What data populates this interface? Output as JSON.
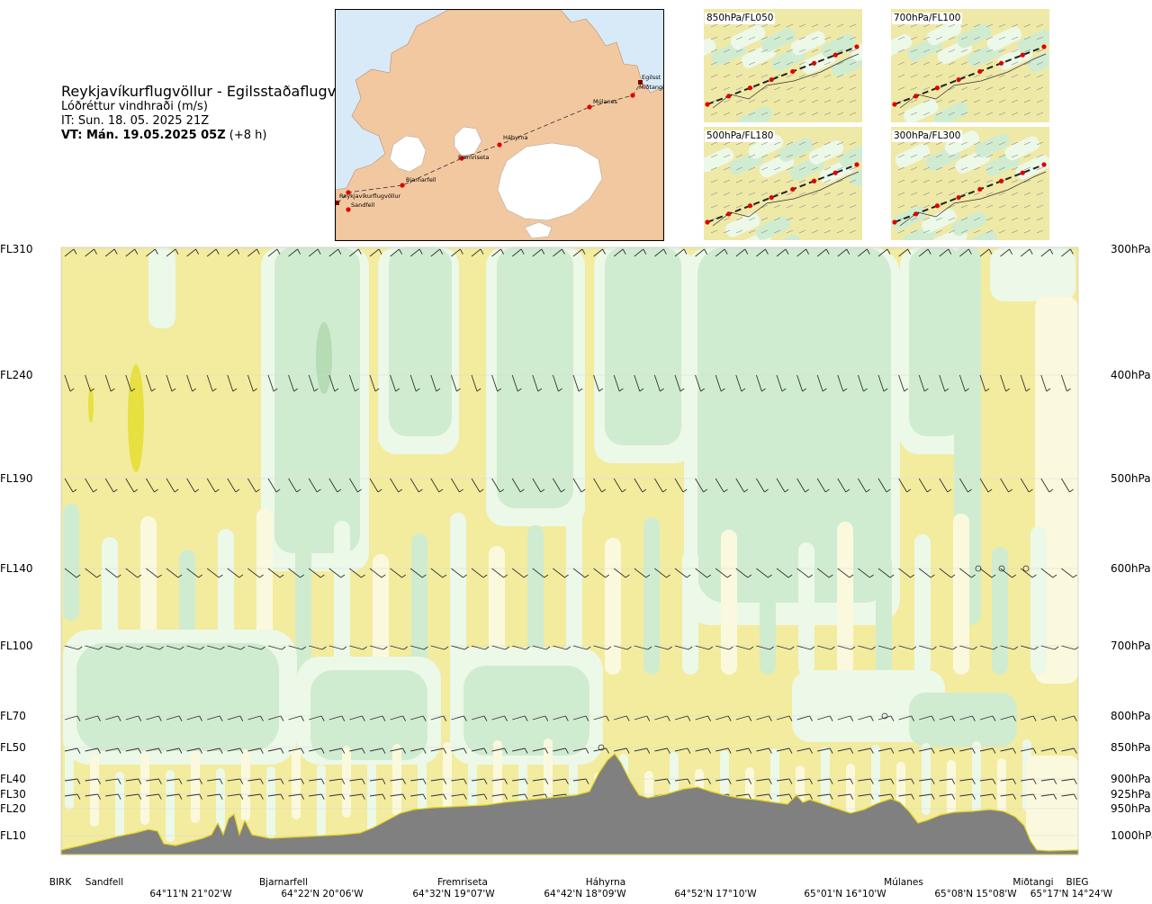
{
  "header": {
    "route_title": "Reykjavíkurflugvöllur - Egilsstaðaflugvöllur",
    "subtitle": "Lóðréttur vindhraði (m/s)",
    "issue_time": "IT: Sun. 18. 05. 2025 21Z",
    "valid_bold": "VT: Mán. 19.05.2025 05Z",
    "valid_offset": " (+8 h)"
  },
  "overview_map": {
    "route_points": [
      {
        "name": "Reykjavíkurflugvöllur"
      },
      {
        "name": "Sandfell"
      },
      {
        "name": "Bjarnarfell"
      },
      {
        "name": "Fremriseta"
      },
      {
        "name": "Háhyrna"
      },
      {
        "name": "Múlanes"
      },
      {
        "name": "Egilsstaðaflugvöllur"
      },
      {
        "name": "Miðtangi"
      }
    ],
    "route_labels": {
      "reykjavik": "Reykjavíkurflugvöllur",
      "sandfell": "Sandfell",
      "bjarnarfell": "Bjarnarfell",
      "fremriseta": "Fremriseta",
      "hahyrna": "Háhyrna",
      "mulanes": "Múlanes",
      "egilsst": "Egilsst",
      "midtangi": "Miðtangi"
    },
    "colors": {
      "sea": "#d8eaf7",
      "land": "#f2c8a0",
      "ice": "#ffffff",
      "route": "#333333",
      "point": "#e00000"
    }
  },
  "mini_maps": [
    {
      "label": "850hPa/FL050"
    },
    {
      "label": "700hPa/FL100"
    },
    {
      "label": "500hPa/FL180"
    },
    {
      "label": "300hPa/FL300"
    }
  ],
  "levels": [
    {
      "fl": "FL310",
      "hpa": "300hPa"
    },
    {
      "fl": "FL240",
      "hpa": "400hPa"
    },
    {
      "fl": "FL190",
      "hpa": "500hPa"
    },
    {
      "fl": "FL140",
      "hpa": "600hPa"
    },
    {
      "fl": "FL100",
      "hpa": "700hPa"
    },
    {
      "fl": "FL70",
      "hpa": "800hPa"
    },
    {
      "fl": "FL50",
      "hpa": "850hPa"
    },
    {
      "fl": "FL40",
      "hpa": "900hPa"
    },
    {
      "fl": "FL30",
      "hpa": "925hPa"
    },
    {
      "fl": "FL20",
      "hpa": "950hPa"
    },
    {
      "fl": "FL10",
      "hpa": "1000hPa"
    }
  ],
  "places": [
    "BIRK",
    "Sandfell",
    "Bjarnarfell",
    "Fremriseta",
    "Háhyrna",
    "Múlanes",
    "Miðtangi",
    "BIEG"
  ],
  "coordinates": [
    "64°11'N 21°02'W",
    "64°22'N 20°06'W",
    "64°32'N 19°07'W",
    "64°42'N 18°09'W",
    "64°52'N 17°10'W",
    "65°01'N 16°10'W",
    "65°08'N 15°08'W",
    "65°17'N 14°24'W"
  ],
  "colors": {
    "sink": "#f3ec9e",
    "sink_light": "#fbf9dd",
    "neutral": "#ecf8e8",
    "lift": "#d0ecd0",
    "strong_lift": "#b5dcb5",
    "strong_sink": "#e6e040",
    "terrain": "#808080",
    "barb": "#333333"
  }
}
